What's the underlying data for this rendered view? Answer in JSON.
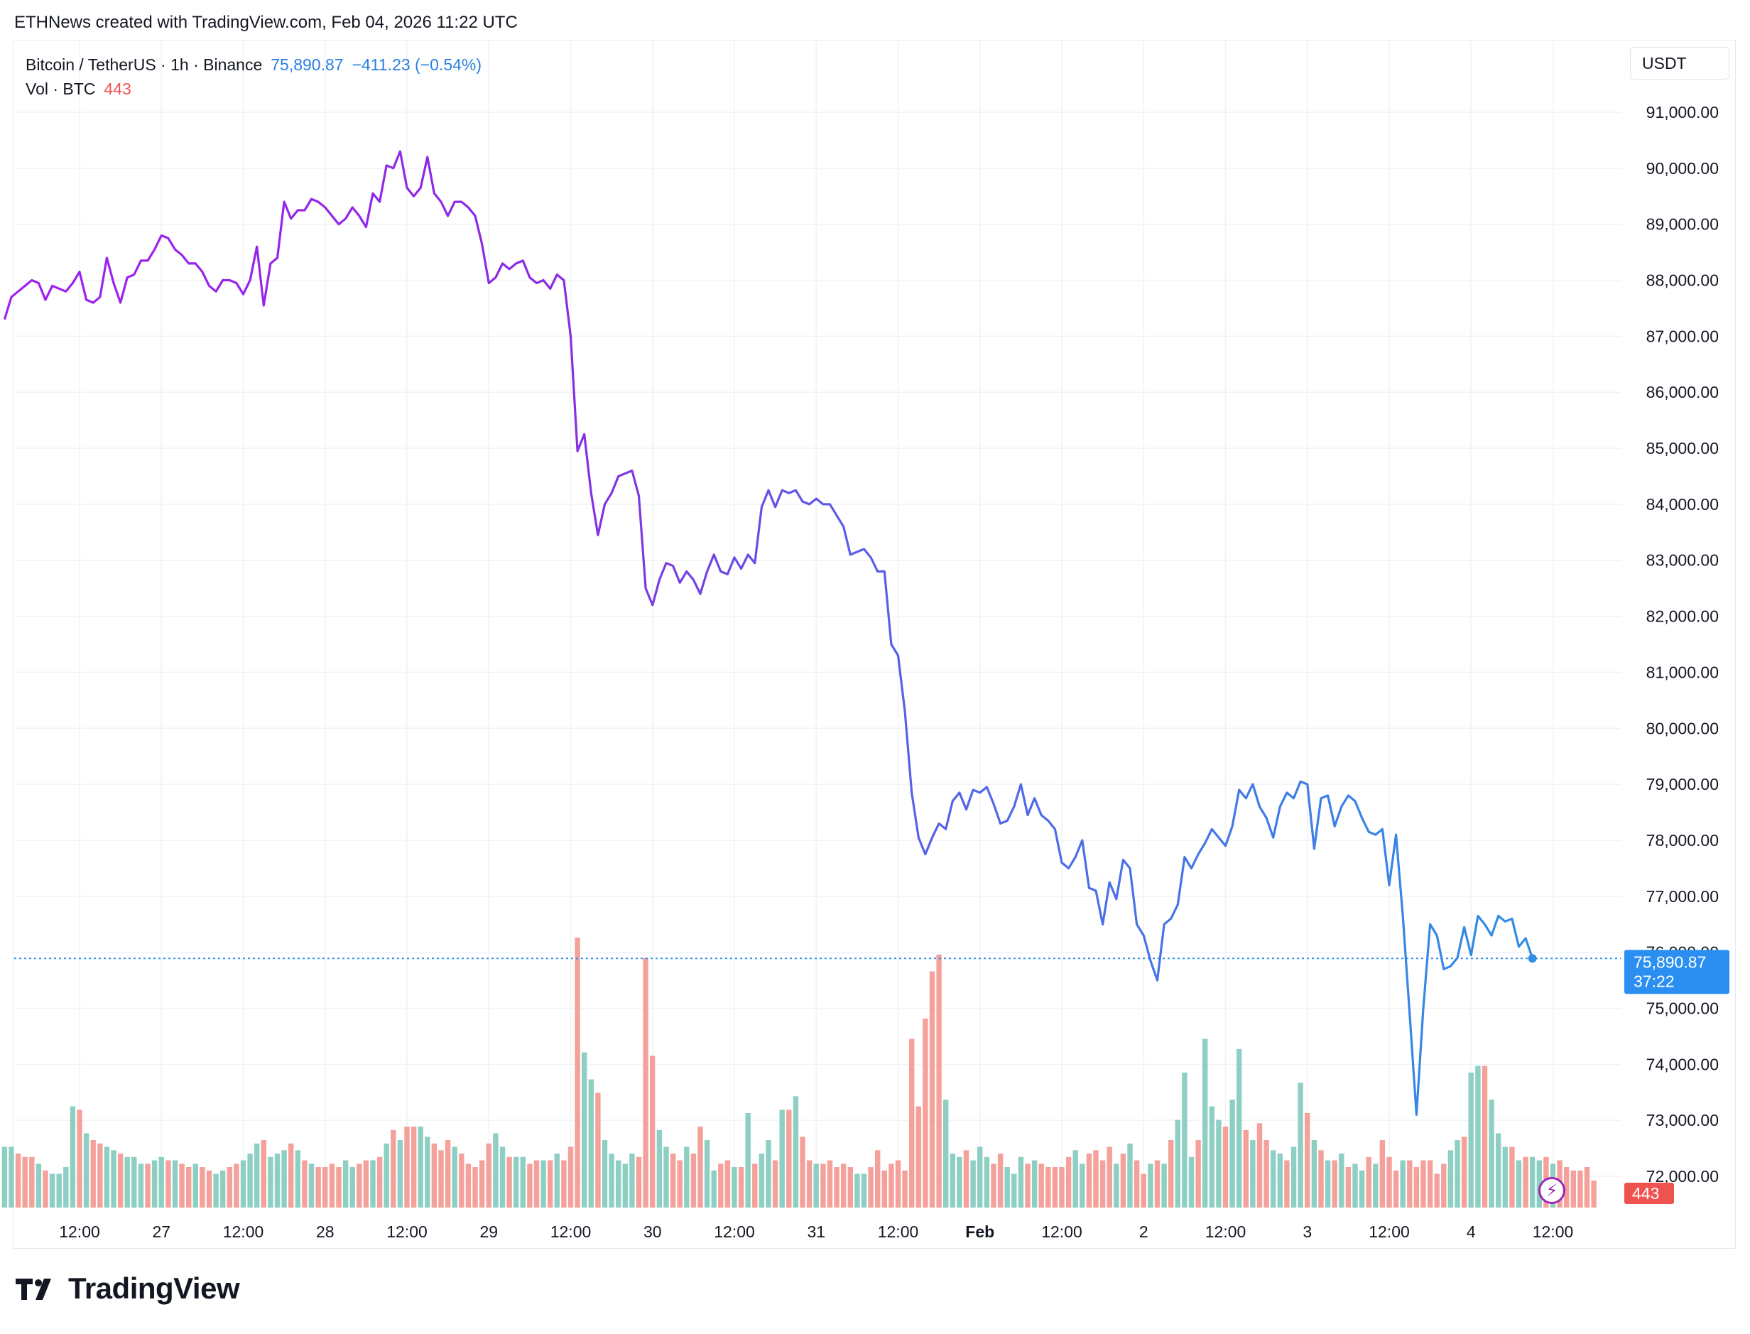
{
  "header": {
    "credit": "ETHNews created with TradingView.com, Feb 04, 2026 11:22 UTC"
  },
  "legend": {
    "symbol": "Bitcoin / TetherUS · 1h · Binance",
    "last_price": "75,890.87",
    "change": "−411.23 (−0.54%)",
    "vol_label": "Vol · BTC",
    "vol_value": "443"
  },
  "currency": "USDT",
  "price_tag": {
    "value": "75,890.87",
    "countdown": "37:22"
  },
  "vol_tag": "443",
  "footer": {
    "brand": "TradingView"
  },
  "colors": {
    "line_start": "#a020f0",
    "line_end": "#2e8fe6",
    "vol_up": "#8ecfc4",
    "vol_down": "#f4a19c",
    "tag_blue": "#2a8ff0",
    "tag_red": "#ef5350"
  },
  "chart_data": {
    "type": "line",
    "title": "Bitcoin / TetherUS · 1h · Binance",
    "ylim": [
      71500,
      91800
    ],
    "y_ticks": [
      "72,000.00",
      "73,000.00",
      "74,000.00",
      "75,000.00",
      "76,000.00",
      "77,000.00",
      "78,000.00",
      "79,000.00",
      "80,000.00",
      "81,000.00",
      "82,000.00",
      "83,000.00",
      "84,000.00",
      "85,000.00",
      "86,000.00",
      "87,000.00",
      "88,000.00",
      "89,000.00",
      "90,000.00",
      "91,000.00"
    ],
    "y_tick_values": [
      72000,
      73000,
      74000,
      75000,
      76000,
      77000,
      78000,
      79000,
      80000,
      81000,
      82000,
      83000,
      84000,
      85000,
      86000,
      87000,
      88000,
      89000,
      90000,
      91000
    ],
    "x_labels": [
      "12:00",
      "27",
      "12:00",
      "28",
      "12:00",
      "29",
      "12:00",
      "30",
      "12:00",
      "31",
      "12:00",
      "Feb",
      "12:00",
      "2",
      "12:00",
      "3",
      "12:00",
      "4",
      "12:00"
    ],
    "x_label_hours": [
      12,
      24,
      36,
      48,
      60,
      72,
      84,
      96,
      108,
      120,
      132,
      144,
      156,
      168,
      180,
      192,
      204,
      216,
      228
    ],
    "x_start_hour": 1,
    "hours_per_point": 1,
    "price": [
      87300,
      87700,
      87800,
      87900,
      88000,
      87950,
      87650,
      87900,
      87850,
      87800,
      87950,
      88150,
      87650,
      87600,
      87700,
      88400,
      87950,
      87600,
      88050,
      88100,
      88350,
      88350,
      88550,
      88800,
      88750,
      88550,
      88450,
      88300,
      88300,
      88150,
      87900,
      87800,
      88000,
      88000,
      87950,
      87750,
      88000,
      88600,
      87550,
      88300,
      88400,
      89400,
      89100,
      89250,
      89250,
      89450,
      89400,
      89300,
      89150,
      89000,
      89100,
      89300,
      89150,
      88950,
      89550,
      89400,
      90050,
      90000,
      90300,
      89650,
      89500,
      89650,
      90200,
      89550,
      89400,
      89150,
      89400,
      89400,
      89300,
      89150,
      88650,
      87950,
      88050,
      88300,
      88200,
      88300,
      88350,
      88050,
      87950,
      88000,
      87850,
      88100,
      88000,
      87000,
      84950,
      85250,
      84200,
      83450,
      84000,
      84200,
      84500,
      84550,
      84600,
      84150,
      82500,
      82200,
      82650,
      82950,
      82900,
      82600,
      82800,
      82650,
      82400,
      82800,
      83100,
      82800,
      82750,
      83050,
      82850,
      83100,
      82950,
      83950,
      84250,
      83950,
      84250,
      84200,
      84250,
      84050,
      84000,
      84100,
      84000,
      84000,
      83800,
      83600,
      83100,
      83150,
      83200,
      83050,
      82800,
      82800,
      81500,
      81300,
      80300,
      78850,
      78050,
      77750,
      78050,
      78300,
      78200,
      78700,
      78850,
      78550,
      78900,
      78850,
      78950,
      78650,
      78300,
      78350,
      78600,
      79000,
      78450,
      78750,
      78450,
      78350,
      78200,
      77600,
      77500,
      77700,
      78000,
      77150,
      77100,
      76500,
      77250,
      76950,
      77650,
      77500,
      76500,
      76300,
      75850,
      75500,
      76500,
      76600,
      76850,
      77700,
      77500,
      77750,
      77950,
      78200,
      78050,
      77900,
      78250,
      78900,
      78750,
      79000,
      78600,
      78400,
      78050,
      78600,
      78850,
      78750,
      79050,
      79000,
      77850,
      78750,
      78800,
      78250,
      78600,
      78800,
      78700,
      78400,
      78150,
      78100,
      78200,
      77200,
      78100,
      76650,
      74900,
      73100,
      75000,
      76500,
      76300,
      75700,
      75750,
      75900,
      76450,
      75950,
      76650,
      76500,
      76300,
      76650,
      76550,
      76600,
      76100,
      76250,
      75890
    ],
    "volume_series": {
      "name": "Vol · BTC"
    },
    "volume": [
      18,
      18,
      16,
      15,
      15,
      13,
      11,
      10,
      10,
      12,
      30,
      29,
      22,
      20,
      19,
      18,
      17,
      16,
      15,
      15,
      13,
      13,
      14,
      15,
      14,
      14,
      13,
      12,
      13,
      12,
      11,
      10,
      11,
      12,
      13,
      14,
      16,
      19,
      20,
      15,
      16,
      17,
      19,
      17,
      14,
      13,
      12,
      12,
      13,
      12,
      14,
      12,
      13,
      14,
      14,
      15,
      19,
      23,
      20,
      24,
      24,
      24,
      21,
      19,
      17,
      20,
      18,
      16,
      13,
      12,
      14,
      19,
      22,
      18,
      15,
      15,
      15,
      13,
      14,
      14,
      14,
      16,
      14,
      18,
      80,
      46,
      38,
      34,
      20,
      16,
      14,
      13,
      16,
      15,
      74,
      45,
      23,
      18,
      16,
      14,
      18,
      16,
      24,
      20,
      11,
      13,
      14,
      12,
      12,
      28,
      13,
      16,
      20,
      14,
      29,
      29,
      33,
      21,
      14,
      13,
      13,
      14,
      12,
      13,
      12,
      10,
      10,
      12,
      17,
      11,
      13,
      14,
      11,
      50,
      30,
      56,
      70,
      75,
      32,
      16,
      15,
      17,
      14,
      18,
      15,
      13,
      16,
      12,
      10,
      15,
      13,
      14,
      13,
      12,
      12,
      12,
      15,
      17,
      13,
      16,
      17,
      14,
      18,
      13,
      16,
      19,
      14,
      10,
      13,
      14,
      13,
      20,
      26,
      40,
      15,
      20,
      50,
      30,
      26,
      24,
      32,
      47,
      23,
      20,
      25,
      20,
      17,
      16,
      14,
      18,
      37,
      28,
      20,
      17,
      14,
      14,
      16,
      12,
      13,
      11,
      15,
      13,
      20,
      15,
      11,
      14,
      14,
      12,
      14,
      14,
      10,
      13,
      17,
      20,
      21,
      40,
      42,
      42,
      32,
      22,
      18,
      18,
      14,
      15,
      15,
      14,
      15,
      13,
      14,
      12,
      11,
      11,
      12,
      8
    ],
    "volume_up": [
      1,
      1,
      0,
      0,
      0,
      1,
      0,
      1,
      1,
      1,
      1,
      0,
      1,
      0,
      0,
      1,
      1,
      0,
      1,
      1,
      1,
      0,
      1,
      1,
      0,
      1,
      0,
      0,
      1,
      0,
      0,
      1,
      1,
      0,
      0,
      1,
      1,
      1,
      0,
      1,
      1,
      1,
      0,
      1,
      0,
      1,
      0,
      0,
      0,
      0,
      1,
      1,
      0,
      0,
      1,
      0,
      1,
      0,
      1,
      0,
      0,
      1,
      1,
      0,
      0,
      0,
      1,
      0,
      0,
      0,
      0,
      0,
      1,
      1,
      0,
      1,
      1,
      0,
      0,
      1,
      0,
      1,
      0,
      0,
      0,
      1,
      1,
      0,
      1,
      1,
      1,
      1,
      1,
      0,
      0,
      0,
      1,
      1,
      0,
      0,
      1,
      0,
      0,
      1,
      1,
      0,
      0,
      1,
      0,
      1,
      0,
      1,
      1,
      0,
      1,
      0,
      1,
      0,
      0,
      1,
      0,
      0,
      0,
      0,
      0,
      1,
      1,
      0,
      0,
      0,
      0,
      0,
      0,
      0,
      0,
      0,
      0,
      0,
      1,
      1,
      1,
      0,
      1,
      1,
      1,
      0,
      0,
      1,
      1,
      1,
      0,
      1,
      0,
      0,
      0,
      0,
      0,
      1,
      1,
      0,
      0,
      0,
      0,
      1,
      0,
      1,
      0,
      0,
      1,
      0,
      1,
      0,
      1,
      1,
      1,
      0,
      1,
      1,
      1,
      0,
      1,
      1,
      0,
      1,
      0,
      0,
      1,
      1,
      0,
      1,
      1,
      0,
      1,
      0,
      1,
      0,
      1,
      0,
      1,
      1,
      0,
      1,
      0,
      0,
      0,
      1,
      0,
      0,
      0,
      0,
      0,
      0,
      1,
      1,
      0,
      1,
      1,
      0,
      1,
      1,
      1,
      0,
      1,
      0,
      1,
      1,
      0,
      1,
      0,
      0
    ]
  }
}
